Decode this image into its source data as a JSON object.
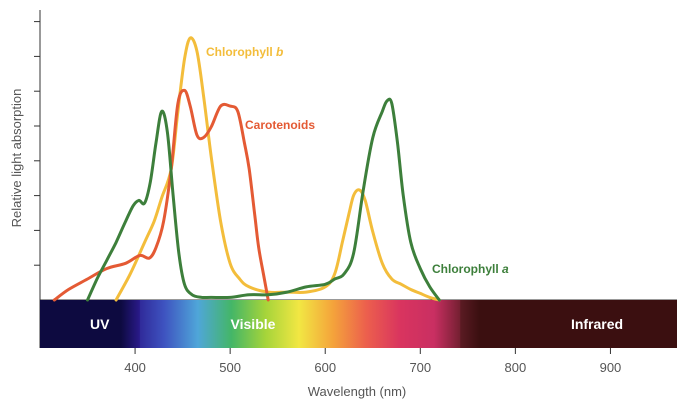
{
  "chart_data": {
    "type": "line",
    "title": "",
    "xlabel": "Wavelength (nm)",
    "ylabel": "Relative light absorption",
    "xlim": [
      300,
      970
    ],
    "ylim": [
      0,
      1
    ],
    "x_ticks": [
      400,
      500,
      600,
      700,
      800,
      900
    ],
    "x_tick_labels": [
      "400",
      "500",
      "600",
      "700",
      "800",
      "900"
    ],
    "y_tick_count": 8,
    "grid": false,
    "legend": "none (series labeled inline)",
    "series": [
      {
        "name": "Chlorophyll b",
        "name_main": "Chlorophyll ",
        "name_italic": "b",
        "color": "#f3bd3b",
        "x": [
          380,
          395,
          410,
          420,
          428,
          438,
          445,
          452,
          458,
          465,
          472,
          480,
          490,
          500,
          510,
          520,
          540,
          560,
          580,
          600,
          610,
          618,
          625,
          630,
          636,
          642,
          650,
          660,
          670,
          680,
          690,
          700,
          710,
          720
        ],
        "y": [
          0.0,
          0.1,
          0.22,
          0.3,
          0.39,
          0.5,
          0.72,
          0.92,
          1.0,
          0.95,
          0.78,
          0.55,
          0.3,
          0.14,
          0.08,
          0.05,
          0.03,
          0.03,
          0.03,
          0.05,
          0.1,
          0.22,
          0.33,
          0.4,
          0.42,
          0.38,
          0.26,
          0.14,
          0.08,
          0.06,
          0.04,
          0.025,
          0.01,
          0.0
        ]
      },
      {
        "name": "Carotenoids",
        "name_main": "Carotenoids",
        "name_italic": "",
        "color": "#e45a34",
        "x": [
          315,
          330,
          350,
          370,
          390,
          405,
          415,
          422,
          430,
          438,
          445,
          452,
          458,
          465,
          472,
          480,
          490,
          500,
          508,
          515,
          520,
          526,
          530,
          535,
          540
        ],
        "y": [
          0.0,
          0.04,
          0.08,
          0.12,
          0.14,
          0.17,
          0.16,
          0.2,
          0.3,
          0.5,
          0.75,
          0.8,
          0.74,
          0.63,
          0.62,
          0.66,
          0.74,
          0.74,
          0.72,
          0.6,
          0.5,
          0.32,
          0.2,
          0.1,
          0.0
        ]
      },
      {
        "name": "Chlorophyll a",
        "name_main": "Chlorophyll ",
        "name_italic": "a",
        "color": "#3d7f3b",
        "x": [
          350,
          360,
          370,
          380,
          390,
          398,
          404,
          410,
          416,
          422,
          428,
          434,
          440,
          446,
          452,
          460,
          470,
          480,
          500,
          520,
          540,
          560,
          580,
          600,
          610,
          620,
          630,
          640,
          650,
          660,
          665,
          670,
          676,
          682,
          690,
          700,
          710,
          720
        ],
        "y": [
          0.0,
          0.08,
          0.15,
          0.22,
          0.3,
          0.36,
          0.38,
          0.37,
          0.45,
          0.6,
          0.72,
          0.64,
          0.4,
          0.18,
          0.06,
          0.02,
          0.01,
          0.01,
          0.01,
          0.02,
          0.02,
          0.03,
          0.05,
          0.06,
          0.08,
          0.1,
          0.18,
          0.42,
          0.62,
          0.72,
          0.76,
          0.75,
          0.6,
          0.4,
          0.22,
          0.12,
          0.05,
          0.0
        ]
      }
    ],
    "annotations": [
      {
        "text": "Chlorophyll b",
        "series": "Chlorophyll b"
      },
      {
        "text": "Carotenoids",
        "series": "Carotenoids"
      },
      {
        "text": "Chlorophyll a",
        "series": "Chlorophyll a"
      }
    ],
    "spectrum_band": {
      "regions": [
        {
          "label": "UV",
          "from": 300,
          "to": 395,
          "color": "#0d0a40"
        },
        {
          "label": "Visible",
          "from": 395,
          "to": 750
        },
        {
          "label": "Infrared",
          "from": 750,
          "to": 970,
          "color": "#3b0f10"
        }
      ],
      "visible_gradient_colors": [
        "#2a1a8a",
        "#3e53c0",
        "#4fa6d9",
        "#44b667",
        "#a5d43a",
        "#f2e743",
        "#f4a33b",
        "#ec5f4d",
        "#d9345f",
        "#c92f62",
        "#5b1b23"
      ]
    }
  }
}
